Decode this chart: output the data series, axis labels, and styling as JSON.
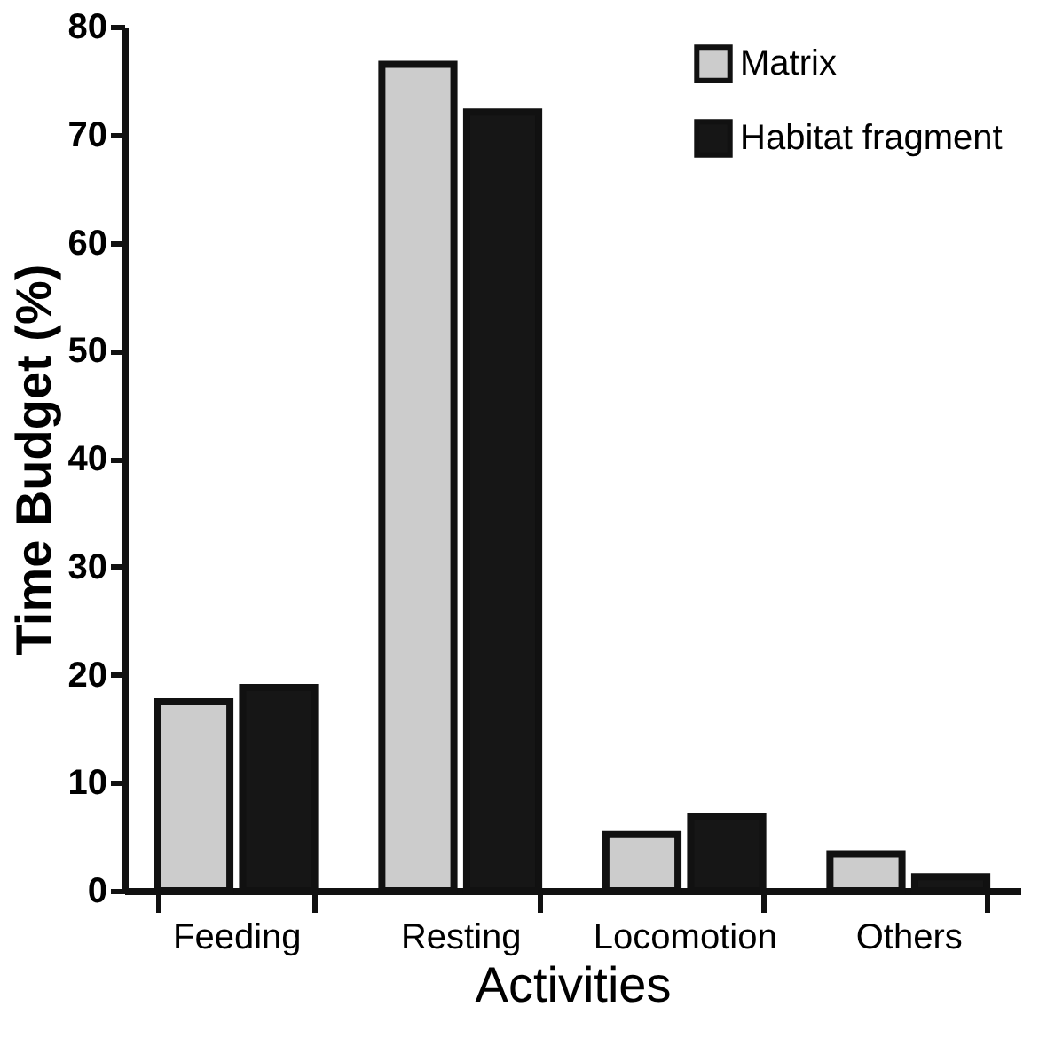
{
  "chart_data": {
    "type": "bar",
    "xlabel": "Activities",
    "ylabel": "Time Budget (%)",
    "categories": [
      "Feeding",
      "Resting",
      "Locomotion",
      "Others"
    ],
    "series": [
      {
        "name": "Matrix",
        "color": "#cccccc",
        "values": [
          17.5,
          76.5,
          5.2,
          3.4
        ]
      },
      {
        "name": "Habitat fragment",
        "color": "#161616",
        "values": [
          18.8,
          72.1,
          6.9,
          1.3
        ]
      }
    ],
    "ylim": [
      0,
      80
    ],
    "yticks": [
      0,
      10,
      20,
      30,
      40,
      50,
      60,
      70,
      80
    ],
    "grid": false,
    "legend": "top right"
  }
}
